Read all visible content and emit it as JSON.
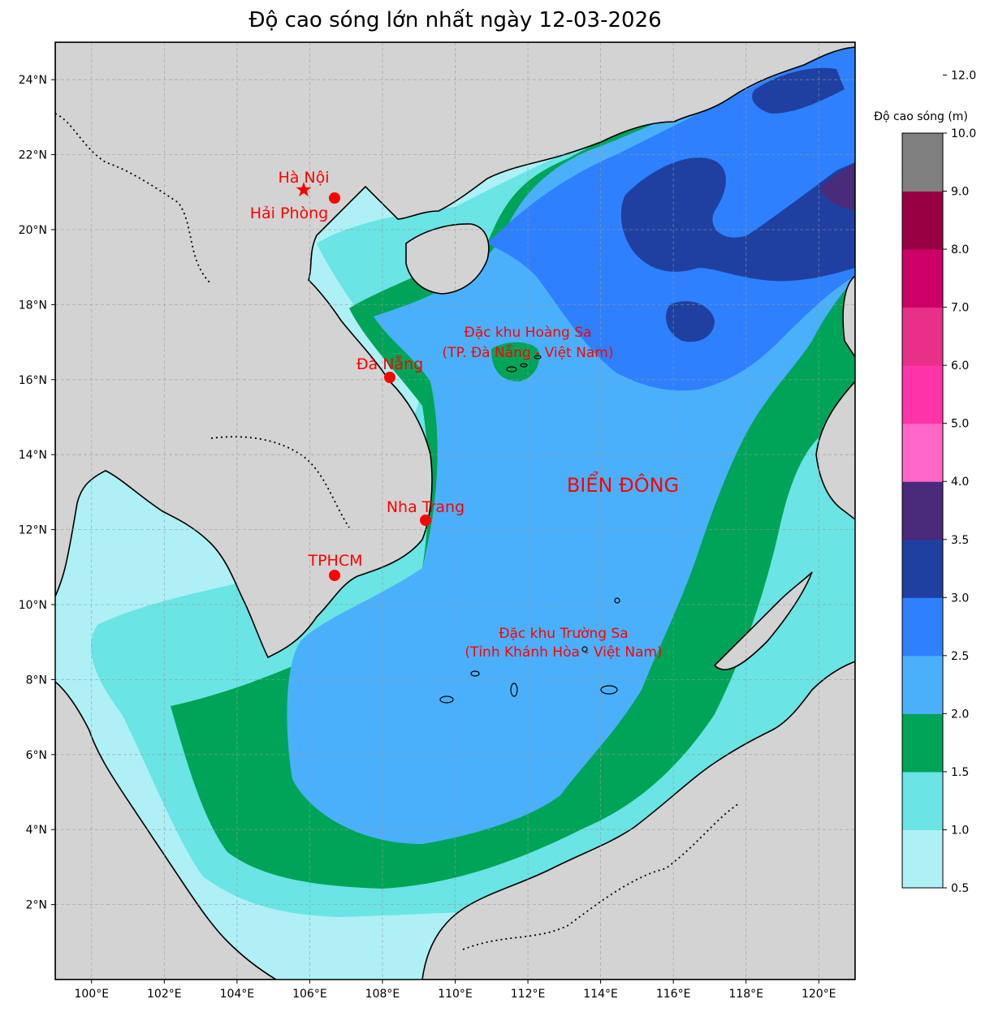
{
  "title": "Độ cao sóng lớn nhất ngày 12-03-2026",
  "axes": {
    "lon_ticks": [
      "100°E",
      "102°E",
      "104°E",
      "106°E",
      "108°E",
      "110°E",
      "112°E",
      "114°E",
      "116°E",
      "118°E",
      "120°E"
    ],
    "lat_ticks": [
      "24°N",
      "22°N",
      "20°N",
      "18°N",
      "16°N",
      "14°N",
      "12°N",
      "10°N",
      "8°N",
      "6°N",
      "4°N",
      "2°N"
    ],
    "lon_range": [
      99,
      121
    ],
    "lat_range": [
      0,
      25
    ],
    "grid": true
  },
  "cities": [
    {
      "name": "Hà Nội",
      "marker": "star"
    },
    {
      "name": "Hải Phòng",
      "marker": "circle"
    },
    {
      "name": "Đà Nẵng",
      "marker": "circle"
    },
    {
      "name": "Nha Trang",
      "marker": "circle"
    },
    {
      "name": "TPHCM",
      "marker": "circle"
    }
  ],
  "regions": {
    "hoang_sa": [
      "Đặc khu Hoàng Sa",
      "(TP. Đà Nẵng - Việt Nam)"
    ],
    "truong_sa": [
      "Đặc khu Trường Sa",
      "(Tỉnh Khánh Hòa - Việt Nam)"
    ],
    "sea": "BIỂN ĐÔNG"
  },
  "colorbar": {
    "title": "Độ cao sóng (m)",
    "levels": [
      "0.5",
      "1.0",
      "1.5",
      "2.0",
      "2.5",
      "3.0",
      "3.5",
      "4.0",
      "5.0",
      "6.0",
      "7.0",
      "8.0",
      "9.0",
      "10.0",
      "12.0"
    ],
    "colors": [
      "#aef0f6",
      "#6ae4e4",
      "#00a458",
      "#4bb0fc",
      "#2f80fe",
      "#1f40a0",
      "#4a2a7a",
      "#ff66c8",
      "#ff34a8",
      "#e83088",
      "#cc0066",
      "#990044",
      "#808080"
    ]
  },
  "colors": {
    "land": "#d3d3d3",
    "marker": "#ff0000"
  }
}
